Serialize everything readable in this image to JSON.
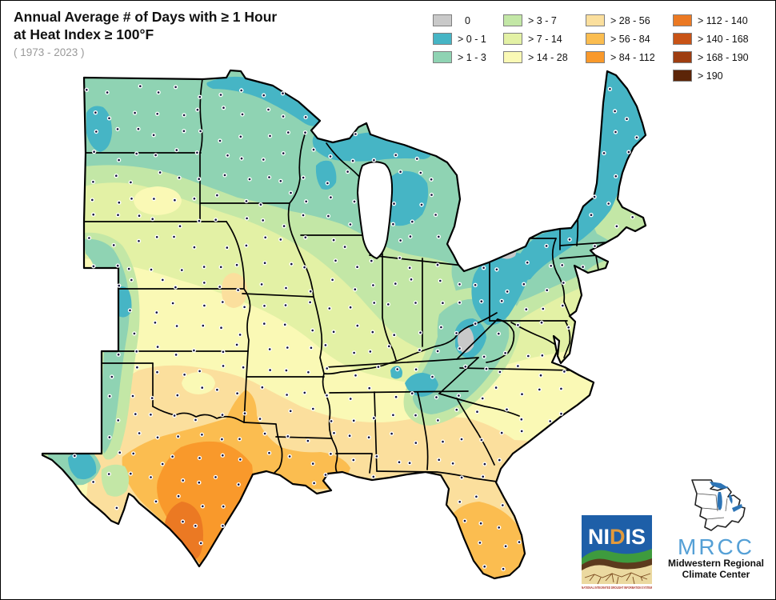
{
  "title": {
    "line1": "Annual Average # of Days with ≥ 1 Hour",
    "line2": "at Heat Index ≥ 100°F",
    "period": "( 1973 - 2023 )"
  },
  "legend": {
    "columns": [
      3,
      3,
      3,
      4
    ],
    "items": [
      {
        "id": "d0",
        "label": "0",
        "color": "#C9C9C9"
      },
      {
        "id": "d0_1",
        "label": "> 0 - 1",
        "color": "#46B5C5"
      },
      {
        "id": "d1_3",
        "label": "> 1 - 3",
        "color": "#8FD3B3"
      },
      {
        "id": "d3_7",
        "label": "> 3 - 7",
        "color": "#C3E7A6"
      },
      {
        "id": "d7_14",
        "label": "> 7 - 14",
        "color": "#E3F1A5"
      },
      {
        "id": "d14_28",
        "label": "> 14 - 28",
        "color": "#FAF9B5"
      },
      {
        "id": "d28_56",
        "label": "> 28 - 56",
        "color": "#FBDF9D"
      },
      {
        "id": "d56_84",
        "label": "> 56 - 84",
        "color": "#FBBD50"
      },
      {
        "id": "d84_112",
        "label": "> 84 - 112",
        "color": "#F9992B"
      },
      {
        "id": "d112_140",
        "label": "> 112 - 140",
        "color": "#EB7923"
      },
      {
        "id": "d140_168",
        "label": "> 140 - 168",
        "color": "#C85316"
      },
      {
        "id": "d168_190",
        "label": "> 168 - 190",
        "color": "#9E3D10"
      },
      {
        "id": "d190",
        "label": "> 190",
        "color": "#5C2508"
      }
    ]
  },
  "map": {
    "base_bucket": "d3_7",
    "outline_color": "#000000",
    "state_line_color": "#000000",
    "water_color": "#FFFFFF",
    "station_dot_fill": "#12123a",
    "station_dot_halo": "#ffffff",
    "description": "Isopleth map of the central and eastern United States. Values are lowest (0 to 1 days) across the northern tier, New England and the Appalachian highlands, increase southward through the Plains and Southeast, and peak at more than 112-140 days in the lower Rio Grande valley of south Texas. Small gray zero-day pockets appear in northwest Pennsylvania and the West Virginia mountains; station locations are shown as dark dots."
  },
  "logos": {
    "nidis": {
      "acronym_part1": "NI",
      "acronym_d": "D",
      "acronym_part2": "IS",
      "caption": "NATIONAL INTEGRATED DROUGHT INFORMATION SYSTEM",
      "field_color": "#1E5FA8",
      "d_color": "#E39A3B",
      "wave_color": "#3E9B3E",
      "soil_dark": "#5C3A1D",
      "soil_tan": "#EBD9A0",
      "caption_color": "#B03A2E"
    },
    "mrcc": {
      "acronym": "MRCC",
      "line1": "Midwestern Regional",
      "line2": "Climate Center",
      "acronym_color": "#55A0D6",
      "lake_color": "#2E75B6",
      "text_color": "#111111"
    }
  }
}
